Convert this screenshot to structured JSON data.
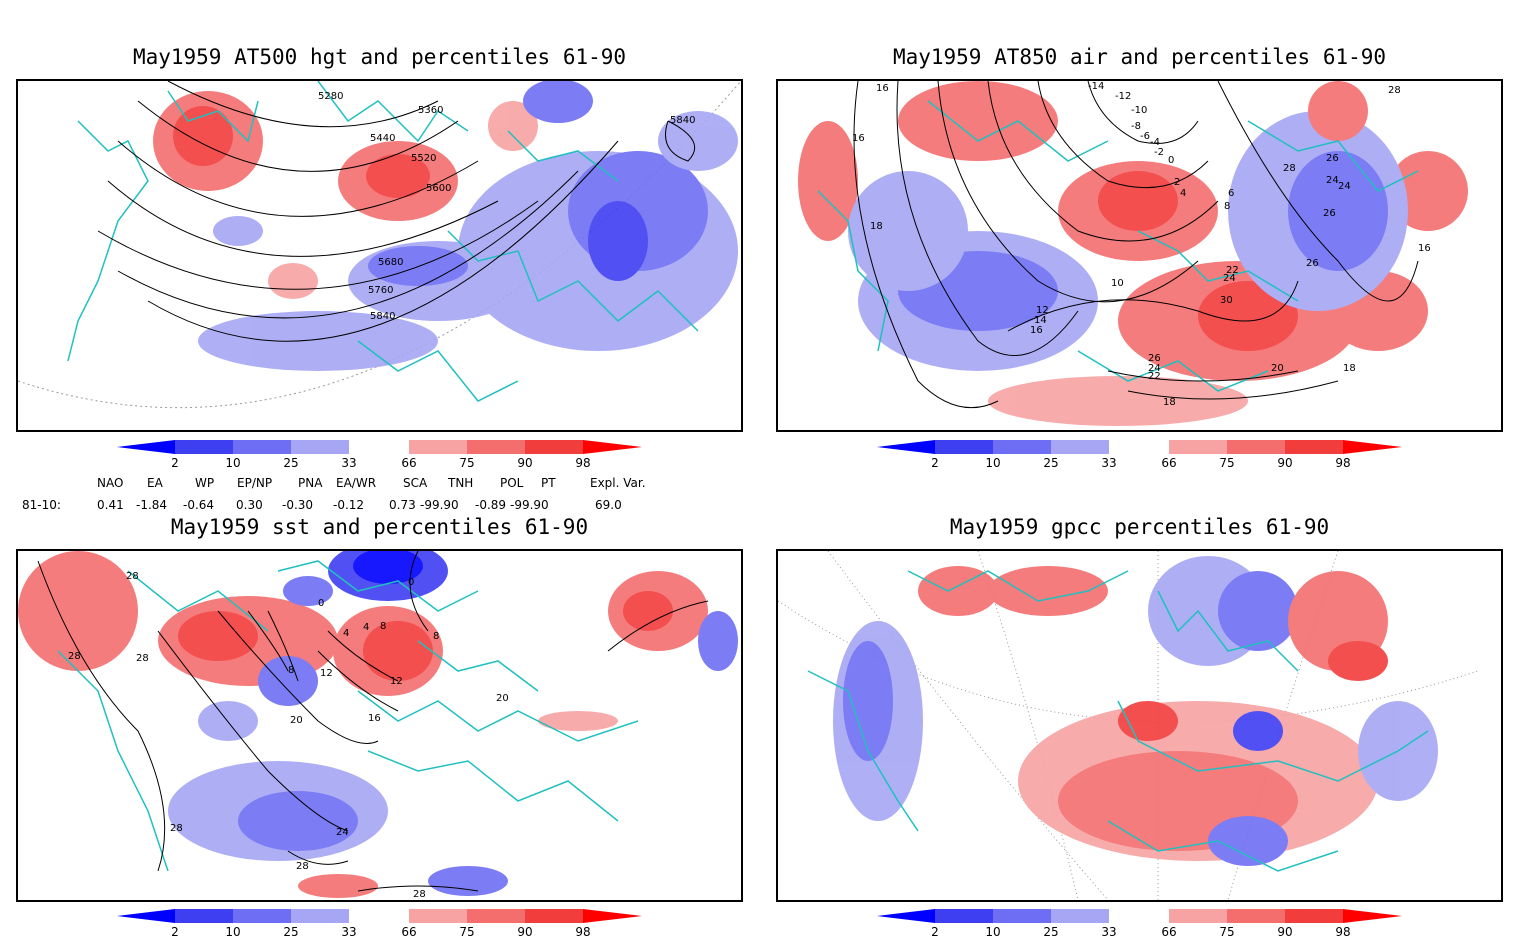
{
  "panels": {
    "p1": {
      "title": "May1959 AT500 hgt and percentiles 61-90",
      "contour_labels": [
        "5280",
        "5360",
        "5440",
        "5520",
        "5600",
        "5680",
        "5760",
        "5840",
        "5840"
      ]
    },
    "p2": {
      "title": "May1959 AT850 air and percentiles 61-90",
      "contour_labels": [
        "-14",
        "-12",
        "-10",
        "-8",
        "-6",
        "-4",
        "-2",
        "0",
        "2",
        "4",
        "6",
        "8",
        "10",
        "12",
        "14",
        "16",
        "16",
        "16",
        "18",
        "18",
        "18",
        "20",
        "22",
        "24",
        "26",
        "28",
        "30",
        "22",
        "24",
        "26",
        "26",
        "26",
        "24",
        "24",
        "28",
        "16"
      ]
    },
    "p3": {
      "title": "May1959 sst and percentiles 61-90",
      "contour_labels": [
        "28",
        "28",
        "28",
        "0",
        "0",
        "4",
        "8",
        "8",
        "4",
        "12",
        "12",
        "16",
        "20",
        "20",
        "24",
        "28",
        "28",
        "28",
        "8"
      ]
    },
    "p4": {
      "title": "May1959 gpcc percentiles 61-90"
    }
  },
  "colorbar": {
    "ticks": [
      "2",
      "10",
      "25",
      "33",
      "66",
      "75",
      "90",
      "98"
    ],
    "colors": {
      "b1": "#0000ff",
      "b2": "#3f3ff2",
      "b3": "#6e6ef4",
      "b4": "#a6a6f5",
      "white": "#ffffff",
      "r1": "#f7a3a3",
      "r2": "#f46e6e",
      "r3": "#f23d3d",
      "r4": "#ff0000"
    }
  },
  "indices": {
    "headers": [
      "NAO",
      "EA",
      "WP",
      "EP/NP",
      "PNA",
      "EA/WR",
      "SCA",
      "TNH",
      "POL",
      "PT",
      "Expl. Var."
    ],
    "row_label": "81-10:",
    "values": [
      "0.41",
      "-1.84",
      "-0.64",
      "0.30",
      "-0.30",
      "-0.12",
      "0.73",
      "-99.90",
      "-0.89",
      "-99.90",
      "69.0"
    ]
  },
  "colors": {
    "coast": "#20c0c0",
    "contour": "#000000",
    "grid": "#888888"
  }
}
